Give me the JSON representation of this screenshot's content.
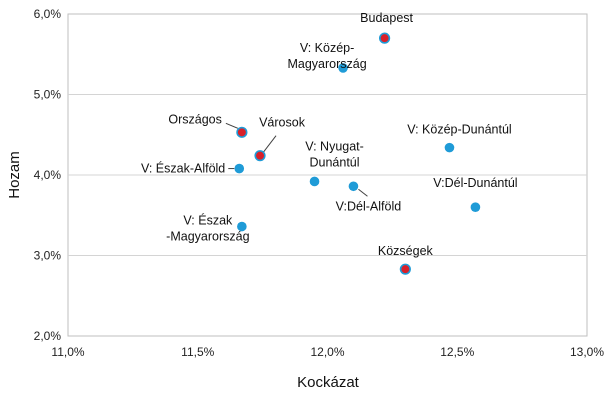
{
  "chart_data": {
    "type": "scatter",
    "title": "",
    "xlabel": "Kockázat",
    "ylabel": "Hozam",
    "xlim": [
      0.11,
      0.13
    ],
    "ylim": [
      0.02,
      0.06
    ],
    "grid": "horizontal",
    "x_ticks": [
      {
        "value": 0.11,
        "label": "11,0%"
      },
      {
        "value": 0.115,
        "label": "11,5%"
      },
      {
        "value": 0.12,
        "label": "12,0%"
      },
      {
        "value": 0.125,
        "label": "12,5%"
      },
      {
        "value": 0.13,
        "label": "13,0%"
      }
    ],
    "y_ticks": [
      {
        "value": 0.02,
        "label": "2,0%"
      },
      {
        "value": 0.03,
        "label": "3,0%"
      },
      {
        "value": 0.04,
        "label": "4,0%"
      },
      {
        "value": 0.05,
        "label": "5,0%"
      },
      {
        "value": 0.06,
        "label": "6,0%"
      }
    ],
    "colors": {
      "blue": "#1f9bd7",
      "red": "#d8202a",
      "leader": "#404040"
    },
    "points": [
      {
        "name": "Budapest",
        "x": 0.1222,
        "y": 0.057,
        "color": "red"
      },
      {
        "name": "V: Közép-Magyarország",
        "x": 0.1206,
        "y": 0.0533,
        "color": "blue"
      },
      {
        "name": "Országos",
        "x": 0.1167,
        "y": 0.0453,
        "color": "red"
      },
      {
        "name": "Városok",
        "x": 0.1174,
        "y": 0.0424,
        "color": "red"
      },
      {
        "name": "V: Közép-Dunántúl",
        "x": 0.1247,
        "y": 0.0434,
        "color": "blue"
      },
      {
        "name": "V: Észak-Alföld",
        "x": 0.1166,
        "y": 0.0408,
        "color": "blue"
      },
      {
        "name": "V: Nyugat-Dunántúl",
        "x": 0.1195,
        "y": 0.0392,
        "color": "blue"
      },
      {
        "name": "V:Dél-Alföld",
        "x": 0.121,
        "y": 0.0386,
        "color": "blue"
      },
      {
        "name": "V:Dél-Dunántúl",
        "x": 0.1257,
        "y": 0.036,
        "color": "blue"
      },
      {
        "name": "V: Észak-Magyarország",
        "x": 0.1167,
        "y": 0.0336,
        "color": "blue"
      },
      {
        "name": "Községek",
        "x": 0.123,
        "y": 0.0283,
        "color": "red"
      }
    ]
  }
}
